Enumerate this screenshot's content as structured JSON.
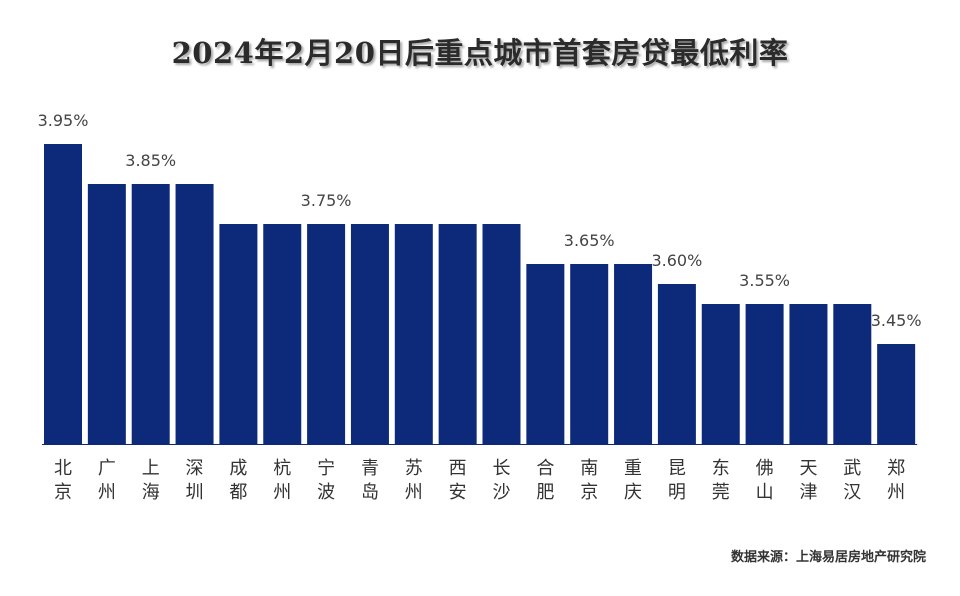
{
  "chart_data": {
    "type": "bar",
    "title": "2024年2月20日后重点城市首套房贷最低利率",
    "categories": [
      "北京",
      "广州",
      "上海",
      "深圳",
      "成都",
      "杭州",
      "宁波",
      "青岛",
      "苏州",
      "西安",
      "长沙",
      "合肥",
      "南京",
      "重庆",
      "昆明",
      "东莞",
      "佛山",
      "天津",
      "武汉",
      "郑州"
    ],
    "values": [
      3.95,
      3.85,
      3.85,
      3.85,
      3.75,
      3.75,
      3.75,
      3.75,
      3.75,
      3.75,
      3.75,
      3.65,
      3.65,
      3.65,
      3.6,
      3.55,
      3.55,
      3.55,
      3.55,
      3.45
    ],
    "unit": "%",
    "data_labels": [
      {
        "category": "北京",
        "text": "3.95%"
      },
      {
        "category": "上海",
        "text": "3.85%"
      },
      {
        "category": "宁波",
        "text": "3.75%"
      },
      {
        "category": "南京",
        "text": "3.65%"
      },
      {
        "category": "昆明",
        "text": "3.60%"
      },
      {
        "category": "佛山",
        "text": "3.55%"
      },
      {
        "category": "郑州",
        "text": "3.45%"
      }
    ],
    "ylim": [
      3.2,
      4.0
    ],
    "grid": false,
    "legend": "none",
    "bar_color": "#0d2a7a",
    "source": "数据来源：上海易居房地产研究院"
  }
}
